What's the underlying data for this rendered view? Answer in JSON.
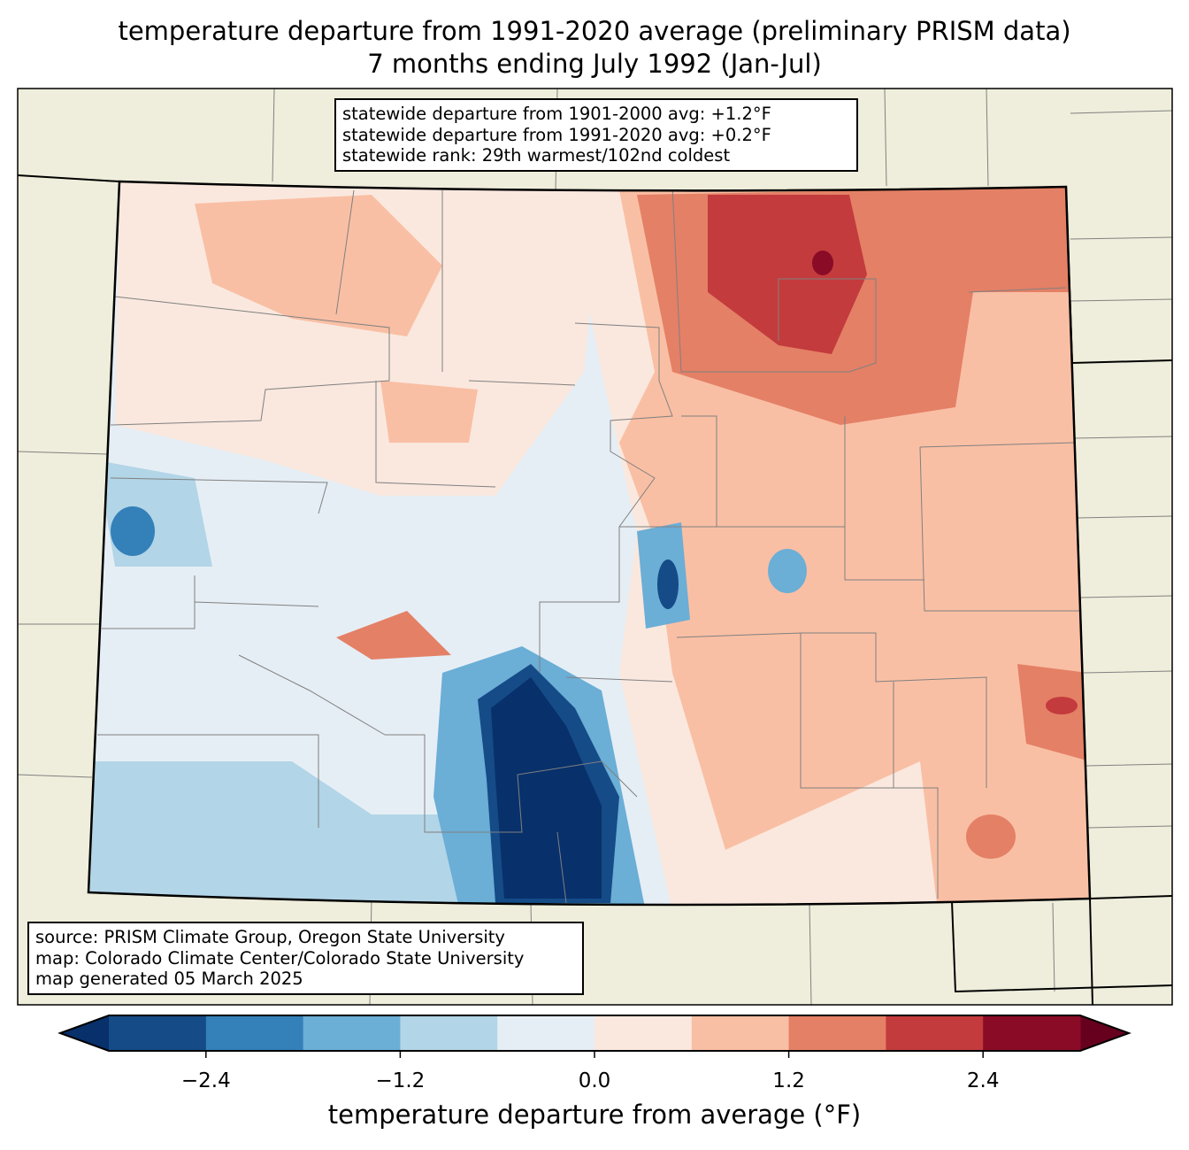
{
  "title": {
    "line1": "temperature departure from 1991-2020 average (preliminary PRISM data)",
    "line2": "7 months ending July 1992 (Jan-Jul)"
  },
  "stats": {
    "line1": "statewide departure from 1901-2000 avg: +1.2°F",
    "line2": "statewide departure from 1991-2020 avg: +0.2°F",
    "line3": "statewide rank: 29th warmest/102nd coldest"
  },
  "source": {
    "line1": "source: PRISM Climate Group, Oregon State University",
    "line2": "map: Colorado Climate Center/Colorado State University",
    "line3": "map generated 05 March 2025"
  },
  "colorbar": {
    "label": "temperature departure from average (°F)",
    "ticks": [
      "−2.4",
      "−1.2",
      "0.0",
      "1.2",
      "2.4"
    ],
    "tick_values": [
      -2.4,
      -1.2,
      0.0,
      1.2,
      2.4
    ],
    "levels": [
      -3.0,
      -2.4,
      -1.8,
      -1.2,
      -0.6,
      0.0,
      0.6,
      1.2,
      1.8,
      2.4,
      3.0
    ],
    "colors": [
      "#154b87",
      "#3480b9",
      "#6baed6",
      "#b2d5e7",
      "#e6eef5",
      "#fae8de",
      "#f9bfa4",
      "#e48066",
      "#c33b3d",
      "#8a0b25"
    ],
    "extend_low_color": "#08306b",
    "extend_high_color": "#67001f"
  },
  "map": {
    "land_color": "#efeedc"
  }
}
